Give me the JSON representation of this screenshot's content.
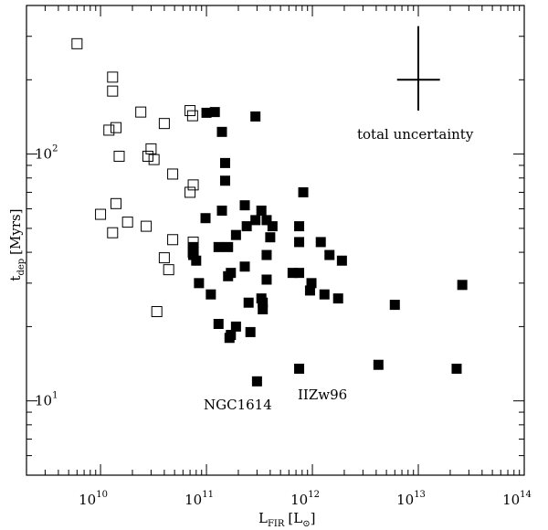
{
  "chart_data": {
    "type": "scatter",
    "title": "",
    "xlabel": {
      "main": "L",
      "sub": "FIR",
      "unit": "[L",
      "unit_sym": "⊙",
      "unit_close": "]"
    },
    "ylabel": {
      "main": "t",
      "sub": "dep",
      "unit": "[Myrs]"
    },
    "xscale": "log",
    "yscale": "log",
    "xlim": [
      2000000000.0,
      100000000000000.0
    ],
    "ylim": [
      5,
      400
    ],
    "grid": false,
    "x_ticks": [
      {
        "value": 10000000000.0,
        "base": "10",
        "exp": "10"
      },
      {
        "value": 100000000000.0,
        "base": "10",
        "exp": "11"
      },
      {
        "value": 1000000000000.0,
        "base": "10",
        "exp": "12"
      },
      {
        "value": 10000000000000.0,
        "base": "10",
        "exp": "13"
      },
      {
        "value": 100000000000000.0,
        "base": "10",
        "exp": "14"
      }
    ],
    "y_ticks": [
      {
        "value": 10,
        "base": "10",
        "exp": "1"
      },
      {
        "value": 100,
        "base": "10",
        "exp": "2"
      }
    ],
    "series": [
      {
        "marker": "open-square",
        "points": [
          [
            6000000000.0,
            280
          ],
          [
            13000000000.0,
            205
          ],
          [
            13000000000.0,
            180
          ],
          [
            12000000000.0,
            125
          ],
          [
            14000000000.0,
            128
          ],
          [
            15000000000.0,
            98
          ],
          [
            24000000000.0,
            148
          ],
          [
            28000000000.0,
            98
          ],
          [
            30000000000.0,
            105
          ],
          [
            32000000000.0,
            95
          ],
          [
            40000000000.0,
            133
          ],
          [
            48000000000.0,
            83
          ],
          [
            70000000000.0,
            150
          ],
          [
            74000000000.0,
            143
          ],
          [
            75000000000.0,
            75
          ],
          [
            70000000000.0,
            70
          ],
          [
            14000000000.0,
            63
          ],
          [
            10000000000.0,
            57
          ],
          [
            13000000000.0,
            48
          ],
          [
            18000000000.0,
            53
          ],
          [
            27000000000.0,
            51
          ],
          [
            48000000000.0,
            45
          ],
          [
            75000000000.0,
            44
          ],
          [
            40000000000.0,
            38
          ],
          [
            44000000000.0,
            34
          ],
          [
            75000000000.0,
            40
          ],
          [
            34000000000.0,
            23
          ]
        ]
      },
      {
        "marker": "filled-square",
        "points": [
          [
            100000000000.0,
            147
          ],
          [
            120000000000.0,
            148
          ],
          [
            290000000000.0,
            142
          ],
          [
            140000000000.0,
            123
          ],
          [
            150000000000.0,
            92
          ],
          [
            150000000000.0,
            78
          ],
          [
            820000000000.0,
            70
          ],
          [
            230000000000.0,
            62
          ],
          [
            330000000000.0,
            59
          ],
          [
            140000000000.0,
            59
          ],
          [
            98000000000.0,
            55
          ],
          [
            290000000000.0,
            54
          ],
          [
            370000000000.0,
            54
          ],
          [
            420000000000.0,
            51
          ],
          [
            240000000000.0,
            51
          ],
          [
            750000000000.0,
            51
          ],
          [
            190000000000.0,
            47
          ],
          [
            400000000000.0,
            46
          ],
          [
            750000000000.0,
            44
          ],
          [
            1200000000000.0,
            44
          ],
          [
            130000000000.0,
            42
          ],
          [
            160000000000.0,
            42
          ],
          [
            75000000000.0,
            42
          ],
          [
            370000000000.0,
            39
          ],
          [
            75000000000.0,
            39
          ],
          [
            1450000000000.0,
            39
          ],
          [
            1900000000000.0,
            37
          ],
          [
            80000000000.0,
            37
          ],
          [
            230000000000.0,
            35
          ],
          [
            170000000000.0,
            33
          ],
          [
            650000000000.0,
            33
          ],
          [
            750000000000.0,
            33
          ],
          [
            160000000000.0,
            32
          ],
          [
            370000000000.0,
            31
          ],
          [
            85000000000.0,
            30
          ],
          [
            980000000000.0,
            30
          ],
          [
            950000000000.0,
            28
          ],
          [
            110000000000.0,
            27
          ],
          [
            1300000000000.0,
            27
          ],
          [
            1750000000000.0,
            26
          ],
          [
            330000000000.0,
            26
          ],
          [
            250000000000.0,
            25
          ],
          [
            340000000000.0,
            25
          ],
          [
            6000000000000.0,
            24.5
          ],
          [
            340000000000.0,
            23.5
          ],
          [
            26000000000000.0,
            29.5
          ],
          [
            130000000000.0,
            20.5
          ],
          [
            190000000000.0,
            20
          ],
          [
            260000000000.0,
            19
          ],
          [
            170000000000.0,
            18.5
          ],
          [
            165000000000.0,
            18
          ],
          [
            4200000000000.0,
            14
          ],
          [
            23000000000000.0,
            13.5
          ],
          [
            750000000000.0,
            13.5
          ],
          [
            300000000000.0,
            12
          ]
        ]
      }
    ],
    "error_bar": {
      "x": 10000000000000.0,
      "y": 200,
      "y_low": 150,
      "y_high": 330,
      "x_low": 6300000000000.0,
      "x_high": 16000000000000.0
    },
    "annotations": {
      "total_uncertainty": "total uncertainty",
      "ngc1614": "NGC1614",
      "iizw96": "IIZw96"
    }
  }
}
